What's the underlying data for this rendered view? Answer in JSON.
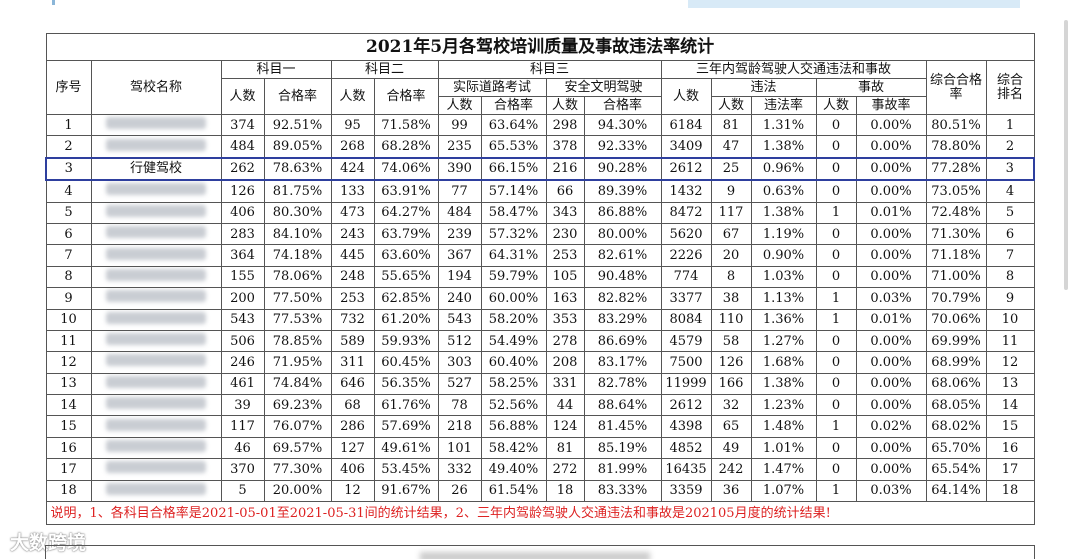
{
  "table": {
    "title": "2021年5月各驾校培训质量及事故违法率统计",
    "headers": {
      "seq": "序号",
      "name": "驾校名称",
      "subject1": "科目一",
      "subject2": "科目二",
      "subject3": "科目三",
      "road": "实际道路考试",
      "safe": "安全文明驾驶",
      "three_year": "三年内驾龄驾驶人交通违法和事故",
      "violation": "违法",
      "accident": "事故",
      "count": "人数",
      "pass_rate": "合格率",
      "violation_rate": "违法率",
      "accident_rate": "事故率",
      "overall_rate": "综合合格率",
      "rank": "综合排名"
    },
    "rows": [
      [
        1,
        null,
        374,
        "92.51%",
        95,
        "71.58%",
        99,
        "63.64%",
        298,
        "94.30%",
        6184,
        81,
        "1.31%",
        0,
        "0.00%",
        "80.51%",
        1
      ],
      [
        2,
        null,
        484,
        "89.05%",
        268,
        "68.28%",
        235,
        "65.53%",
        378,
        "92.33%",
        3409,
        47,
        "1.38%",
        0,
        "0.00%",
        "78.80%",
        2
      ],
      [
        3,
        "行健驾校",
        262,
        "78.63%",
        424,
        "74.06%",
        390,
        "66.15%",
        216,
        "90.28%",
        2612,
        25,
        "0.96%",
        0,
        "0.00%",
        "77.28%",
        3
      ],
      [
        4,
        null,
        126,
        "81.75%",
        133,
        "63.91%",
        77,
        "57.14%",
        66,
        "89.39%",
        1432,
        9,
        "0.63%",
        0,
        "0.00%",
        "73.05%",
        4
      ],
      [
        5,
        null,
        406,
        "80.30%",
        473,
        "64.27%",
        484,
        "58.47%",
        343,
        "86.88%",
        8472,
        117,
        "1.38%",
        1,
        "0.01%",
        "72.48%",
        5
      ],
      [
        6,
        null,
        283,
        "84.10%",
        243,
        "63.79%",
        239,
        "57.32%",
        230,
        "80.00%",
        5620,
        67,
        "1.19%",
        0,
        "0.00%",
        "71.30%",
        6
      ],
      [
        7,
        null,
        364,
        "74.18%",
        445,
        "63.60%",
        367,
        "64.31%",
        253,
        "82.61%",
        2226,
        20,
        "0.90%",
        0,
        "0.00%",
        "71.18%",
        7
      ],
      [
        8,
        null,
        155,
        "78.06%",
        248,
        "55.65%",
        194,
        "59.79%",
        105,
        "90.48%",
        774,
        8,
        "1.03%",
        0,
        "0.00%",
        "71.00%",
        8
      ],
      [
        9,
        null,
        200,
        "77.50%",
        253,
        "62.85%",
        240,
        "60.00%",
        163,
        "82.82%",
        3377,
        38,
        "1.13%",
        1,
        "0.03%",
        "70.79%",
        9
      ],
      [
        10,
        null,
        543,
        "77.53%",
        732,
        "61.20%",
        543,
        "58.20%",
        353,
        "83.29%",
        8084,
        110,
        "1.36%",
        1,
        "0.01%",
        "70.06%",
        10
      ],
      [
        11,
        null,
        506,
        "78.85%",
        589,
        "59.93%",
        512,
        "54.49%",
        278,
        "86.69%",
        4579,
        58,
        "1.27%",
        0,
        "0.00%",
        "69.99%",
        11
      ],
      [
        12,
        null,
        246,
        "71.95%",
        311,
        "60.45%",
        303,
        "60.40%",
        208,
        "83.17%",
        7500,
        126,
        "1.68%",
        0,
        "0.00%",
        "68.99%",
        12
      ],
      [
        13,
        null,
        461,
        "74.84%",
        646,
        "56.35%",
        527,
        "58.25%",
        331,
        "82.78%",
        11999,
        166,
        "1.38%",
        0,
        "0.00%",
        "68.06%",
        13
      ],
      [
        14,
        null,
        39,
        "69.23%",
        68,
        "61.76%",
        78,
        "52.56%",
        44,
        "88.64%",
        2612,
        32,
        "1.23%",
        0,
        "0.00%",
        "68.05%",
        14
      ],
      [
        15,
        null,
        117,
        "76.07%",
        286,
        "57.69%",
        218,
        "56.88%",
        124,
        "81.45%",
        4398,
        65,
        "1.48%",
        1,
        "0.02%",
        "68.02%",
        15
      ],
      [
        16,
        null,
        46,
        "69.57%",
        127,
        "49.61%",
        101,
        "58.42%",
        81,
        "85.19%",
        4852,
        49,
        "1.01%",
        0,
        "0.00%",
        "65.70%",
        16
      ],
      [
        17,
        null,
        370,
        "77.30%",
        406,
        "53.45%",
        332,
        "49.40%",
        272,
        "81.99%",
        16435,
        242,
        "1.47%",
        0,
        "0.00%",
        "65.54%",
        17
      ],
      [
        18,
        null,
        5,
        "20.00%",
        12,
        "91.67%",
        26,
        "61.54%",
        18,
        "83.33%",
        3359,
        36,
        "1.07%",
        1,
        "0.03%",
        "64.14%",
        18
      ]
    ],
    "note": "说明，1、各科目合格率是2021-05-01至2021-05-31间的统计结果，2、三年内驾龄驾驶人交通违法和事故是202105月度的统计结果!"
  },
  "watermark": "大数跨境"
}
